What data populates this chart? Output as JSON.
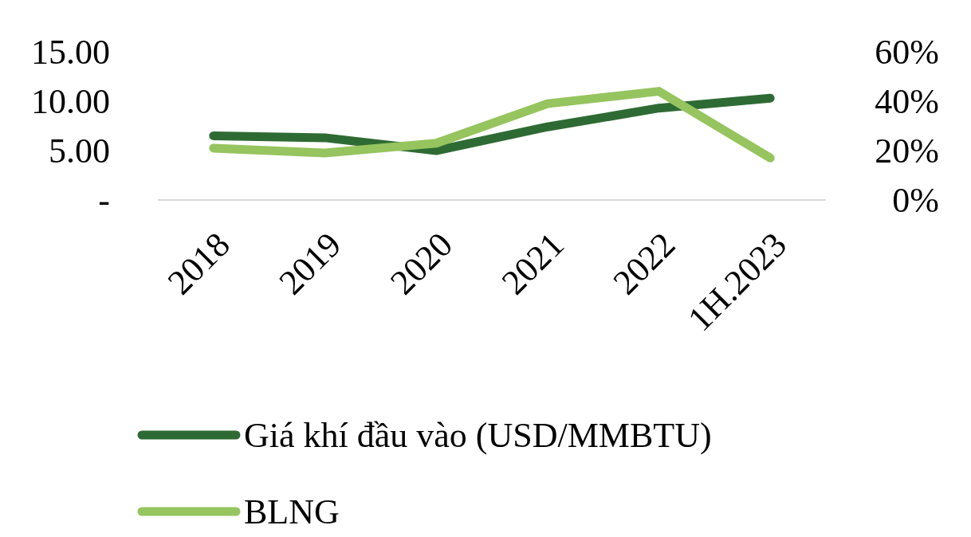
{
  "chart_data": {
    "type": "line",
    "categories": [
      "2018",
      "2019",
      "2020",
      "2021",
      "2022",
      "1H.2023"
    ],
    "series": [
      {
        "name": "Giá khí đầu vào (USD/MMBTU)",
        "color": "#2e6b34",
        "values": [
          6.5,
          6.3,
          5.0,
          7.4,
          9.3,
          10.3
        ]
      },
      {
        "name": "BLNG",
        "color": "#96c45e",
        "axis": "y2",
        "values": [
          21,
          19,
          23,
          39,
          44,
          17
        ]
      }
    ],
    "ylim": [
      0,
      15
    ],
    "yticks": [
      {
        "value": 0,
        "label": "-"
      },
      {
        "value": 5,
        "label": "5.00"
      },
      {
        "value": 10,
        "label": "10.00"
      },
      {
        "value": 15,
        "label": "15.00"
      }
    ],
    "y2lim": [
      0,
      60
    ],
    "y2ticks": [
      {
        "value": 0,
        "label": "0%"
      },
      {
        "value": 20,
        "label": "20%"
      },
      {
        "value": 40,
        "label": "40%"
      },
      {
        "value": 60,
        "label": "60%"
      }
    ],
    "legend": "bottom",
    "grid": false,
    "marker": "none",
    "line_style": "solid"
  }
}
